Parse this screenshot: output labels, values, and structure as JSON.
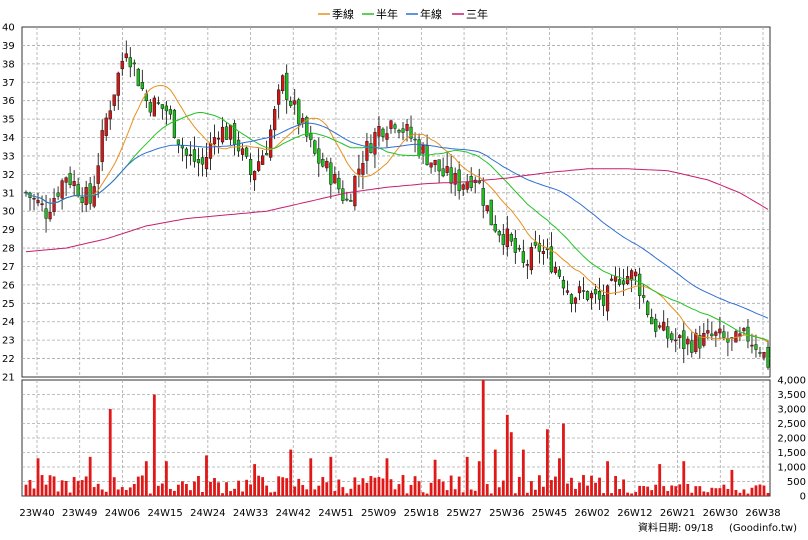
{
  "chart_data": {
    "type": "line",
    "title": "",
    "legend": {
      "placement": "top-center",
      "items": [
        {
          "name": "季線",
          "color": "#e8901e"
        },
        {
          "name": "半年",
          "color": "#22c322"
        },
        {
          "name": "年線",
          "color": "#2e6fd6"
        },
        {
          "name": "三年",
          "color": "#c81e6e"
        }
      ]
    },
    "x_tick_labels": [
      "23W40",
      "23W49",
      "24W06",
      "24W15",
      "24W24",
      "24W33",
      "24W42",
      "24W51",
      "25W09",
      "25W18",
      "25W27",
      "25W36",
      "25W45",
      "26W02",
      "26W12",
      "26W21",
      "26W30",
      "26W38"
    ],
    "price_axis": {
      "ylim": [
        21,
        40
      ],
      "ticks": [
        21,
        22,
        23,
        24,
        25,
        26,
        27,
        28,
        29,
        30,
        31,
        32,
        33,
        34,
        35,
        36,
        37,
        38,
        39,
        40
      ],
      "grid": true
    },
    "volume_axis": {
      "ylim": [
        0,
        4000
      ],
      "ticks": [
        "0",
        "500",
        "1,000",
        "1,500",
        "2,000",
        "2,500",
        "3,000",
        "3,500",
        "4,000"
      ]
    },
    "colors": {
      "up": "#d01818",
      "down": "#22bb22",
      "volume": "#e01818",
      "grid": "#aaaaaa"
    },
    "price_anchors": [
      [
        0,
        31
      ],
      [
        5,
        30
      ],
      [
        10,
        32
      ],
      [
        16,
        30.5
      ],
      [
        20,
        35
      ],
      [
        25,
        39
      ],
      [
        30,
        36
      ],
      [
        35,
        35.5
      ],
      [
        40,
        33
      ],
      [
        44,
        32.5
      ],
      [
        48,
        34.5
      ],
      [
        52,
        34
      ],
      [
        56,
        32
      ],
      [
        60,
        33.5
      ],
      [
        64,
        37
      ],
      [
        68,
        35
      ],
      [
        72,
        33
      ],
      [
        76,
        32
      ],
      [
        80,
        30.5
      ],
      [
        84,
        33
      ],
      [
        88,
        34.5
      ],
      [
        92,
        35
      ],
      [
        96,
        34
      ],
      [
        100,
        33
      ],
      [
        104,
        32
      ],
      [
        108,
        31.5
      ],
      [
        112,
        32
      ],
      [
        116,
        29.5
      ],
      [
        120,
        28.5
      ],
      [
        124,
        27
      ],
      [
        128,
        28
      ],
      [
        132,
        27
      ],
      [
        136,
        25.5
      ],
      [
        140,
        25.5
      ],
      [
        144,
        25
      ],
      [
        148,
        26.5
      ],
      [
        152,
        26.5
      ],
      [
        156,
        24
      ],
      [
        160,
        23.2
      ],
      [
        164,
        22.8
      ],
      [
        168,
        23
      ],
      [
        172,
        23.2
      ],
      [
        176,
        22.8
      ],
      [
        180,
        23.2
      ],
      [
        183,
        22.6
      ],
      [
        185,
        21.8
      ]
    ],
    "volume_spikes": [
      [
        3,
        1300
      ],
      [
        16,
        1350
      ],
      [
        21,
        3000
      ],
      [
        30,
        1200
      ],
      [
        32,
        3500
      ],
      [
        35,
        1200
      ],
      [
        45,
        1400
      ],
      [
        57,
        1100
      ],
      [
        66,
        1600
      ],
      [
        71,
        1300
      ],
      [
        76,
        1350
      ],
      [
        90,
        1300
      ],
      [
        102,
        1250
      ],
      [
        110,
        1350
      ],
      [
        113,
        1200
      ],
      [
        114,
        4000
      ],
      [
        117,
        1600
      ],
      [
        120,
        2800
      ],
      [
        121,
        2200
      ],
      [
        124,
        1600
      ],
      [
        130,
        2300
      ],
      [
        133,
        1300
      ],
      [
        134,
        2500
      ],
      [
        145,
        1200
      ],
      [
        158,
        1100
      ],
      [
        164,
        1200
      ],
      [
        176,
        900
      ]
    ],
    "ma_period_weeks": {
      "季線": 13,
      "半年": 26,
      "年線": 52
    },
    "three_year_line": [
      [
        0,
        27.8
      ],
      [
        10,
        28
      ],
      [
        20,
        28.5
      ],
      [
        30,
        29.2
      ],
      [
        40,
        29.6
      ],
      [
        50,
        29.8
      ],
      [
        60,
        30
      ],
      [
        70,
        30.5
      ],
      [
        80,
        31
      ],
      [
        90,
        31.3
      ],
      [
        100,
        31.5
      ],
      [
        110,
        31.6
      ],
      [
        120,
        31.8
      ],
      [
        130,
        32.1
      ],
      [
        140,
        32.3
      ],
      [
        150,
        32.3
      ],
      [
        160,
        32.2
      ],
      [
        170,
        31.7
      ],
      [
        178,
        31
      ],
      [
        185,
        30.1
      ]
    ]
  },
  "footer": {
    "date_label": "資料日期: 09/18",
    "source": "(Goodinfo.tw)"
  }
}
